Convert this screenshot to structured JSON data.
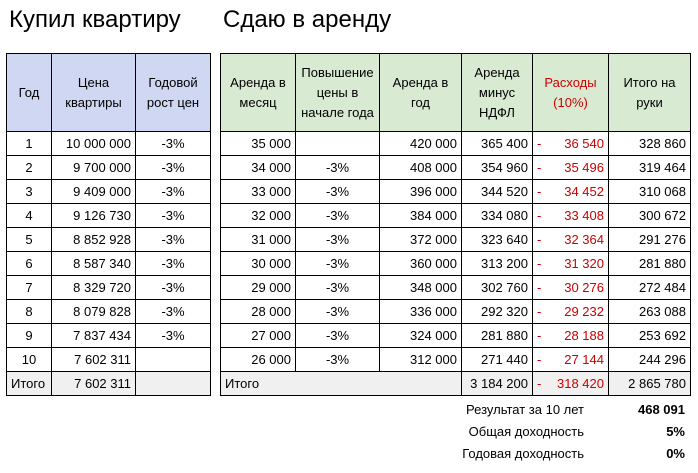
{
  "titles": {
    "left": "Купил квартиру",
    "right": "Сдаю в аренду"
  },
  "buy": {
    "headers": [
      "Год",
      "Цена квартиры",
      "Годовой рост цен"
    ],
    "rows": [
      [
        "1",
        "10 000 000",
        "-3%"
      ],
      [
        "2",
        "9 700 000",
        "-3%"
      ],
      [
        "3",
        "9 409 000",
        "-3%"
      ],
      [
        "4",
        "9 126 730",
        "-3%"
      ],
      [
        "5",
        "8 852 928",
        "-3%"
      ],
      [
        "6",
        "8 587 340",
        "-3%"
      ],
      [
        "7",
        "8 329 720",
        "-3%"
      ],
      [
        "8",
        "8 079 828",
        "-3%"
      ],
      [
        "9",
        "7 837 434",
        "-3%"
      ],
      [
        "10",
        "7 602 311",
        ""
      ]
    ],
    "total": [
      "Итого",
      "7 602 311",
      ""
    ]
  },
  "rent": {
    "headers": [
      "Аренда в месяц",
      "Повышение цены в начале года",
      "Аренда в год",
      "Аренда минус НДФЛ",
      "Расходы (10%)",
      "Итого на руки"
    ],
    "rows": [
      [
        "35 000",
        "",
        "420 000",
        "365 400",
        "36 540",
        "328 860"
      ],
      [
        "34 000",
        "-3%",
        "408 000",
        "354 960",
        "35 496",
        "319 464"
      ],
      [
        "33 000",
        "-3%",
        "396 000",
        "344 520",
        "34 452",
        "310 068"
      ],
      [
        "32 000",
        "-3%",
        "384 000",
        "334 080",
        "33 408",
        "300 672"
      ],
      [
        "31 000",
        "-3%",
        "372 000",
        "323 640",
        "32 364",
        "291 276"
      ],
      [
        "30 000",
        "-3%",
        "360 000",
        "313 200",
        "31 320",
        "281 880"
      ],
      [
        "29 000",
        "-3%",
        "348 000",
        "302 760",
        "30 276",
        "272 484"
      ],
      [
        "28 000",
        "-3%",
        "336 000",
        "292 320",
        "29 232",
        "263 088"
      ],
      [
        "27 000",
        "-3%",
        "324 000",
        "281 880",
        "28 188",
        "253 692"
      ],
      [
        "26 000",
        "-3%",
        "312 000",
        "271 440",
        "27 144",
        "244 296"
      ]
    ],
    "total": {
      "label": "Итого",
      "net": "3 184 200",
      "expenses": "318 420",
      "take_home": "2 865 780"
    }
  },
  "summary": [
    {
      "label": "Результат за 10 лет",
      "value": "468 091"
    },
    {
      "label": "Общая доходность",
      "value": "5%"
    },
    {
      "label": "Годовая доходность",
      "value": "0%"
    }
  ],
  "colors": {
    "buy_header_bg": "#cfd7f3",
    "rent_header_bg": "#d9ead3",
    "expense_text": "#cc0000",
    "total_bg": "#f0f0f0"
  }
}
